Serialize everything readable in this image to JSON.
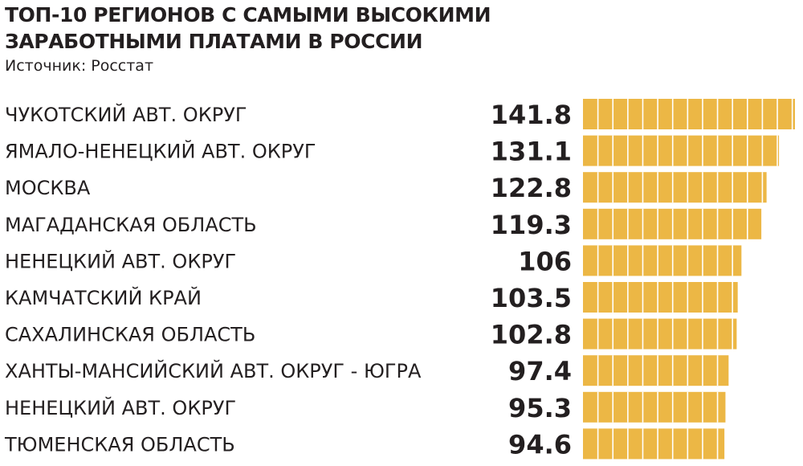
{
  "title_lines": [
    "ТОП-10 РЕГИОНОВ С САМЫМИ ВЫСОКИМИ",
    "ЗАРАБОТНЫМИ ПЛАТАМИ В РОССИИ"
  ],
  "subtitle": "Источник: Росстат",
  "colors": {
    "bar": "#ecb745",
    "bar_divider": "#ffffff",
    "text": "#231f20"
  },
  "chart_data": {
    "type": "bar",
    "orientation": "horizontal",
    "title": "ТОП-10 РЕГИОНОВ С САМЫМИ ВЫСОКИМИ ЗАРАБОТНЫМИ ПЛАТАМИ В РОССИИ",
    "subtitle": "Источник: Росстат",
    "categories": [
      "ЧУКОТСКИЙ АВТ. ОКРУГ",
      "ЯМАЛО-НЕНЕЦКИЙ АВТ. ОКРУГ",
      "МОСКВА",
      "МАГАДАНСКАЯ ОБЛАСТЬ",
      "НЕНЕЦКИЙ АВТ. ОКРУГ",
      "КАМЧАТСКИЙ КРАЙ",
      "САХАЛИНСКАЯ ОБЛАСТЬ",
      "ХАНТЫ-МАНСИЙСКИЙ АВТ. ОКРУГ - ЮГРА",
      "НЕНЕЦКИЙ АВТ. ОКРУГ",
      "ТЮМЕНСКАЯ ОБЛАСТЬ"
    ],
    "values": [
      141.8,
      131.1,
      122.8,
      119.3,
      106,
      103.5,
      102.8,
      97.4,
      95.3,
      94.6
    ],
    "value_labels": [
      "141.8",
      "131.1",
      "122.8",
      "119.3",
      "106",
      "103.5",
      "102.8",
      "97.4",
      "95.3",
      "94.6"
    ],
    "segment_step": 10,
    "grid": false,
    "legend": "none"
  }
}
